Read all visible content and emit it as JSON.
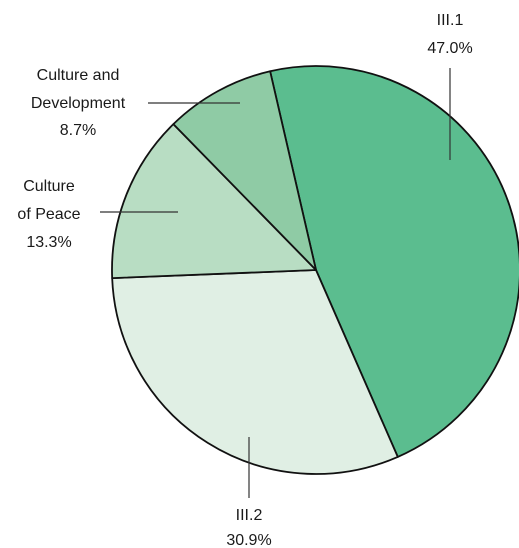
{
  "chart_data": {
    "type": "pie",
    "slices": [
      {
        "label_lines": [
          "III.1"
        ],
        "value_text": "47.0%",
        "value": 47.0,
        "color": "#5bbd8f"
      },
      {
        "label_lines": [
          "III.2"
        ],
        "value_text": "30.9%",
        "value": 30.9,
        "color": "#e0efe4"
      },
      {
        "label_lines": [
          "Culture",
          "of Peace"
        ],
        "value_text": "13.3%",
        "value": 13.3,
        "color": "#b8ddc3"
      },
      {
        "label_lines": [
          "Culture and",
          "Development"
        ],
        "value_text": "8.7%",
        "value": 8.7,
        "color": "#8fcba5"
      }
    ],
    "title": "",
    "legend": "none"
  }
}
